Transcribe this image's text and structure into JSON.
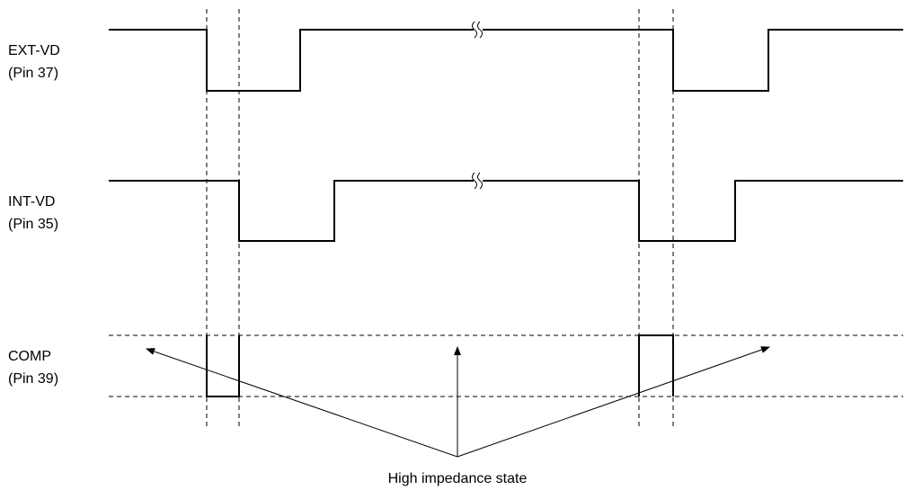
{
  "signals": [
    {
      "name": "EXT-VD",
      "pin": "(Pin 37)"
    },
    {
      "name": "INT-VD",
      "pin": "(Pin 35)"
    },
    {
      "name": "COMP",
      "pin": "(Pin 39)"
    }
  ],
  "annotation": "High impedance state"
}
